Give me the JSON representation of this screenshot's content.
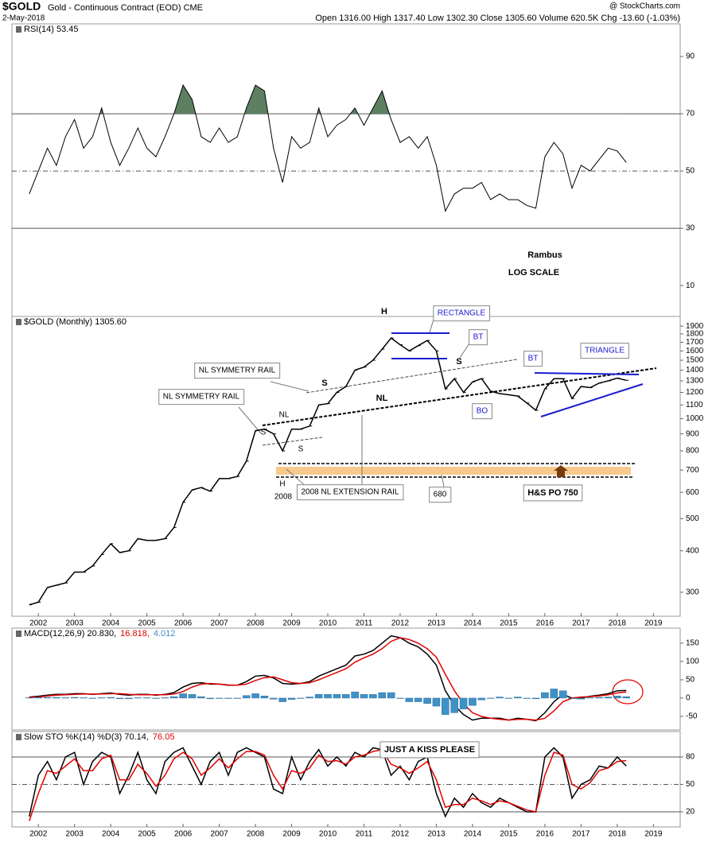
{
  "header": {
    "symbol": "$GOLD",
    "title": "Gold - Continuous Contract (EOD) CME",
    "date": "2-May-2018",
    "quote": "Open 1316.00  High 1317.40  Low 1302.30  Close 1305.60  Volume 620.5K  Chg -13.60 (-1.03%)",
    "credit": "@ StockCharts.com"
  },
  "chart_data": [
    {
      "type": "line",
      "legend": [
        "RSI(14) 53.45"
      ],
      "x": [
        2001.75,
        2002,
        2002.25,
        2002.5,
        2002.75,
        2003,
        2003.25,
        2003.5,
        2003.75,
        2004,
        2004.25,
        2004.5,
        2004.75,
        2005,
        2005.25,
        2005.5,
        2005.75,
        2006,
        2006.25,
        2006.5,
        2006.75,
        2007,
        2007.25,
        2007.5,
        2007.75,
        2008,
        2008.25,
        2008.5,
        2008.75,
        2009,
        2009.25,
        2009.5,
        2009.75,
        2010,
        2010.25,
        2010.5,
        2010.75,
        2011,
        2011.25,
        2011.5,
        2011.75,
        2012,
        2012.25,
        2012.5,
        2012.75,
        2013,
        2013.25,
        2013.5,
        2013.75,
        2014,
        2014.25,
        2014.5,
        2014.75,
        2015,
        2015.25,
        2015.5,
        2015.75,
        2016,
        2016.25,
        2016.5,
        2016.75,
        2017,
        2017.25,
        2017.5,
        2017.75,
        2018,
        2018.25
      ],
      "series": [
        {
          "color": "#000000",
          "fill_color": "#5c8060",
          "fill_above": 70,
          "values": [
            42,
            50,
            58,
            52,
            62,
            68,
            58,
            62,
            72,
            60,
            52,
            58,
            65,
            58,
            55,
            62,
            70,
            80,
            75,
            62,
            60,
            65,
            60,
            62,
            72,
            80,
            78,
            58,
            46,
            62,
            58,
            60,
            72,
            62,
            66,
            68,
            72,
            66,
            72,
            78,
            68,
            60,
            62,
            58,
            62,
            52,
            36,
            42,
            44,
            44,
            46,
            40,
            42,
            40,
            40,
            38,
            37,
            55,
            60,
            56,
            44,
            52,
            50,
            54,
            58,
            57,
            53
          ]
        }
      ],
      "xlim": [
        2001.27,
        2019.74
      ],
      "ylim": [
        -0.8,
        101.4
      ],
      "yticks": [
        10,
        30,
        50,
        70,
        90
      ],
      "reference_lines": [
        70,
        50,
        30
      ],
      "annotations": [
        "Rambus",
        "LOG SCALE"
      ]
    },
    {
      "type": "line",
      "log": true,
      "legend": [
        "$GOLD (Monthly) 1305.60"
      ],
      "x": [
        2001.75,
        2002,
        2002.25,
        2002.5,
        2002.75,
        2003,
        2003.25,
        2003.5,
        2003.75,
        2004,
        2004.25,
        2004.5,
        2004.75,
        2005,
        2005.25,
        2005.5,
        2005.75,
        2006,
        2006.25,
        2006.5,
        2006.75,
        2007,
        2007.25,
        2007.5,
        2007.75,
        2008,
        2008.25,
        2008.5,
        2008.75,
        2009,
        2009.25,
        2009.5,
        2009.75,
        2010,
        2010.25,
        2010.5,
        2010.75,
        2011,
        2011.25,
        2011.5,
        2011.75,
        2012,
        2012.25,
        2012.5,
        2012.75,
        2013,
        2013.25,
        2013.5,
        2013.75,
        2014,
        2014.25,
        2014.5,
        2014.75,
        2015,
        2015.25,
        2015.5,
        2015.75,
        2016,
        2016.25,
        2016.5,
        2016.75,
        2017,
        2017.25,
        2017.5,
        2017.75,
        2018,
        2018.25
      ],
      "series": [
        {
          "color": "#000000",
          "values": [
            275,
            280,
            310,
            315,
            320,
            345,
            345,
            360,
            390,
            420,
            395,
            400,
            435,
            430,
            430,
            435,
            470,
            560,
            610,
            620,
            605,
            660,
            660,
            670,
            745,
            920,
            930,
            900,
            800,
            930,
            930,
            950,
            1100,
            1110,
            1200,
            1250,
            1400,
            1430,
            1500,
            1620,
            1750,
            1670,
            1600,
            1660,
            1720,
            1600,
            1230,
            1320,
            1200,
            1290,
            1320,
            1210,
            1190,
            1180,
            1170,
            1115,
            1060,
            1230,
            1320,
            1320,
            1150,
            1250,
            1240,
            1280,
            1300,
            1325,
            1305
          ]
        }
      ],
      "xlim": [
        2001.27,
        2019.74
      ],
      "ylim": [
        254,
        2032
      ],
      "yticks": [
        300,
        400,
        500,
        600,
        700,
        800,
        900,
        1000,
        1100,
        1200,
        1300,
        1400,
        1500,
        1600,
        1700,
        1800,
        1900
      ],
      "xticks": [
        2002,
        2003,
        2004,
        2005,
        2006,
        2007,
        2008,
        2009,
        2010,
        2011,
        2012,
        2013,
        2014,
        2015,
        2016,
        2017,
        2018,
        2019
      ],
      "annotations": [
        "H",
        "RECTANGLE",
        "BT",
        "S",
        "BT",
        "TRIANGLE",
        "NL SYMMETRY RAIL",
        "NL SYMMETRY RAIL",
        "S",
        "NL",
        "NL",
        "S",
        "S",
        "H",
        "2008",
        "2008 NL EXTENSION RAIL",
        "680",
        "H&S PO 750",
        "BO"
      ]
    },
    {
      "type": "line",
      "legend": [
        "MACD(12,26,9) 20.830,",
        "16.818,",
        "4.012"
      ],
      "x": [
        2001.75,
        2002,
        2002.25,
        2002.5,
        2002.75,
        2003,
        2003.25,
        2003.5,
        2003.75,
        2004,
        2004.25,
        2004.5,
        2004.75,
        2005,
        2005.25,
        2005.5,
        2005.75,
        2006,
        2006.25,
        2006.5,
        2006.75,
        2007,
        2007.25,
        2007.5,
        2007.75,
        2008,
        2008.25,
        2008.5,
        2008.75,
        2009,
        2009.25,
        2009.5,
        2009.75,
        2010,
        2010.25,
        2010.5,
        2010.75,
        2011,
        2011.25,
        2011.5,
        2011.75,
        2012,
        2012.25,
        2012.5,
        2012.75,
        2013,
        2013.25,
        2013.5,
        2013.75,
        2014,
        2014.25,
        2014.5,
        2014.75,
        2015,
        2015.25,
        2015.5,
        2015.75,
        2016,
        2016.25,
        2016.5,
        2016.75,
        2017,
        2017.25,
        2017.5,
        2017.75,
        2018,
        2018.25
      ],
      "series": [
        {
          "color": "#000000",
          "values": [
            3,
            5,
            8,
            10,
            10,
            12,
            12,
            10,
            12,
            14,
            10,
            8,
            10,
            10,
            8,
            10,
            15,
            30,
            40,
            42,
            38,
            38,
            35,
            35,
            45,
            60,
            62,
            55,
            40,
            38,
            40,
            45,
            60,
            70,
            80,
            90,
            115,
            120,
            130,
            150,
            170,
            165,
            150,
            140,
            120,
            90,
            20,
            -20,
            -45,
            -60,
            -55,
            -55,
            -55,
            -60,
            -55,
            -58,
            -62,
            -40,
            -10,
            10,
            0,
            0,
            5,
            8,
            12,
            20,
            20.83
          ]
        },
        {
          "color": "#e00000",
          "values": [
            2,
            3,
            6,
            8,
            9,
            10,
            11,
            11,
            11,
            12,
            12,
            10,
            9,
            9,
            9,
            9,
            11,
            18,
            30,
            38,
            40,
            38,
            36,
            35,
            38,
            48,
            56,
            58,
            50,
            42,
            40,
            42,
            50,
            60,
            70,
            80,
            98,
            110,
            120,
            135,
            155,
            165,
            160,
            150,
            135,
            112,
            65,
            20,
            -15,
            -40,
            -50,
            -55,
            -58,
            -60,
            -58,
            -58,
            -60,
            -55,
            -35,
            -10,
            0,
            3,
            4,
            6,
            9,
            14,
            16.818
          ]
        },
        {
          "color": "#3f92c8",
          "type": "bar",
          "values": [
            1,
            2,
            2,
            2,
            1,
            2,
            1,
            -1,
            1,
            2,
            -2,
            -2,
            1,
            1,
            -1,
            1,
            4,
            12,
            10,
            4,
            -2,
            0,
            -1,
            0,
            7,
            12,
            6,
            -3,
            -10,
            -4,
            0,
            3,
            10,
            10,
            10,
            10,
            17,
            10,
            10,
            15,
            15,
            0,
            -10,
            -10,
            -15,
            -22,
            -45,
            -40,
            -30,
            -20,
            -5,
            0,
            3,
            0,
            3,
            0,
            -2,
            15,
            25,
            20,
            0,
            -3,
            1,
            2,
            3,
            6,
            4.012
          ]
        }
      ],
      "xlim": [
        2001.27,
        2019.74
      ],
      "ylim": [
        -87,
        191
      ],
      "yticks": [
        -50,
        0,
        50,
        100,
        150
      ]
    },
    {
      "type": "line",
      "legend": [
        "Slow STO %K(14) %D(3) 70.14,",
        "76.05"
      ],
      "x": [
        2001.75,
        2002,
        2002.25,
        2002.5,
        2002.75,
        2003,
        2003.25,
        2003.5,
        2003.75,
        2004,
        2004.25,
        2004.5,
        2004.75,
        2005,
        2005.25,
        2005.5,
        2005.75,
        2006,
        2006.25,
        2006.5,
        2006.75,
        2007,
        2007.25,
        2007.5,
        2007.75,
        2008,
        2008.25,
        2008.5,
        2008.75,
        2009,
        2009.25,
        2009.5,
        2009.75,
        2010,
        2010.25,
        2010.5,
        2010.75,
        2011,
        2011.25,
        2011.5,
        2011.75,
        2012,
        2012.25,
        2012.5,
        2012.75,
        2013,
        2013.25,
        2013.5,
        2013.75,
        2014,
        2014.25,
        2014.5,
        2014.75,
        2015,
        2015.25,
        2015.5,
        2015.75,
        2016,
        2016.25,
        2016.5,
        2016.75,
        2017,
        2017.25,
        2017.5,
        2017.75,
        2018,
        2018.25
      ],
      "series": [
        {
          "color": "#000000",
          "values": [
            15,
            60,
            75,
            55,
            80,
            85,
            50,
            75,
            85,
            80,
            40,
            60,
            85,
            55,
            40,
            75,
            85,
            90,
            70,
            50,
            75,
            85,
            60,
            85,
            90,
            85,
            80,
            45,
            40,
            80,
            55,
            75,
            88,
            70,
            80,
            70,
            85,
            80,
            90,
            88,
            60,
            70,
            55,
            75,
            80,
            40,
            15,
            35,
            25,
            40,
            30,
            25,
            35,
            30,
            25,
            20,
            20,
            80,
            90,
            80,
            35,
            50,
            55,
            70,
            68,
            80,
            70.14
          ]
        },
        {
          "color": "#e00000",
          "values": [
            10,
            40,
            65,
            62,
            70,
            78,
            65,
            65,
            78,
            82,
            55,
            55,
            72,
            62,
            48,
            60,
            78,
            85,
            78,
            60,
            68,
            78,
            68,
            78,
            86,
            86,
            82,
            60,
            45,
            65,
            62,
            68,
            82,
            75,
            76,
            72,
            80,
            82,
            86,
            88,
            72,
            68,
            62,
            68,
            75,
            55,
            25,
            28,
            28,
            35,
            32,
            28,
            32,
            30,
            26,
            22,
            20,
            60,
            85,
            82,
            50,
            45,
            52,
            65,
            68,
            75,
            76.05
          ]
        }
      ],
      "xlim": [
        2001.27,
        2019.74
      ],
      "ylim": [
        3.5,
        107.8
      ],
      "yticks": [
        20,
        50,
        80
      ],
      "reference_lines": [
        80,
        50,
        20
      ],
      "xticks": [
        2002,
        2003,
        2004,
        2005,
        2006,
        2007,
        2008,
        2009,
        2010,
        2011,
        2012,
        2013,
        2014,
        2015,
        2016,
        2017,
        2018,
        2019
      ],
      "annotations": [
        "JUST A KISS PLEASE"
      ]
    }
  ]
}
